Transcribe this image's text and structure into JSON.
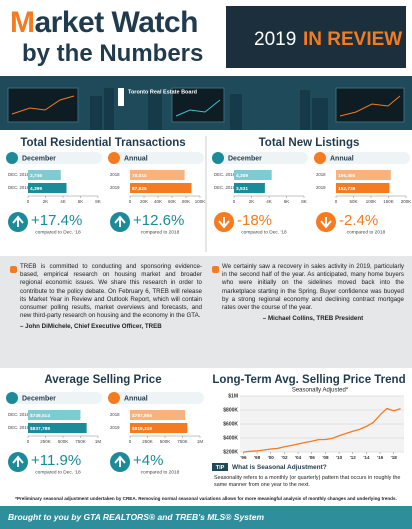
{
  "header": {
    "title": "Market Watch",
    "subtitle": "by the Numbers",
    "badge_year": "2019",
    "badge_text": "IN REVIEW",
    "logo": "Toronto Real Estate Board"
  },
  "sections": [
    "Total Residential Transactions",
    "Total New Listings",
    "Average Selling Price"
  ],
  "quotes": [
    {
      "text": "TREB is committed to conducting and sponsoring evidence-based, empirical research on housing market and broader regional economic issues. We share this research in order to contribute to the policy debate. On February 6, TREB will release its Market Year in Review and Outlook Report, which will contain consumer polling results, market overviews and forecasts, and new third-party research on housing and the economy in the GTA.",
      "author": "– John DiMichele, Chief Executive Officer, TREB"
    },
    {
      "text": "We certainly saw a recovery in sales activity in 2019, particularly in the second half of the year. As anticipated, many home buyers who were initially on the sidelines moved back into the marketplace starting in the Spring. Buyer confidence was buoyed by a strong regional economy and declining contract mortgage rates over the course of the year.",
      "author": "– Michael Collins, TREB President"
    }
  ],
  "chart_data": [
    {
      "type": "bar",
      "title": "December",
      "categories": [
        "DEC. 2018",
        "DEC. 2019"
      ],
      "values": [
        3746,
        4399
      ],
      "value_labels": [
        "3,746",
        "4,399"
      ],
      "colors": [
        "#7fcbd3",
        "#1b8a99"
      ],
      "xlim": [
        0,
        8000
      ],
      "xticks": [
        0,
        {
          "value": 2000,
          "label": "2K"
        },
        {
          "value": 4000,
          "label": "4K"
        },
        {
          "value": 6000,
          "label": "6K"
        },
        {
          "value": 8000,
          "label": "8K"
        }
      ],
      "change": 17.4,
      "change_label": "+17.4%",
      "change_note": "compared to Dec. '18"
    },
    {
      "type": "bar",
      "title": "Annual",
      "categories": [
        "2018",
        "2019"
      ],
      "values": [
        78015,
        87825
      ],
      "value_labels": [
        "78,015",
        "87,825"
      ],
      "colors": [
        "#f9b27c",
        "#f47b20"
      ],
      "xlim": [
        0,
        100000
      ],
      "xticks": [
        0,
        {
          "value": 20000,
          "label": "20K"
        },
        {
          "value": 40000,
          "label": "40K"
        },
        {
          "value": 60000,
          "label": "60K"
        },
        {
          "value": 80000,
          "label": "80K"
        },
        {
          "value": 100000,
          "label": "100K"
        }
      ],
      "change": 12.6,
      "change_label": "+12.6%",
      "change_note": "compared to 2018"
    },
    {
      "type": "bar",
      "title": "December",
      "categories": [
        "DEC. 2018",
        "DEC. 2019"
      ],
      "values": [
        4309,
        3531
      ],
      "value_labels": [
        "4,309",
        "3,531"
      ],
      "colors": [
        "#7fcbd3",
        "#1b8a99"
      ],
      "xlim": [
        0,
        8000
      ],
      "xticks": [
        0,
        {
          "value": 2000,
          "label": "2K"
        },
        {
          "value": 4000,
          "label": "4K"
        },
        {
          "value": 6000,
          "label": "6K"
        },
        {
          "value": 8000,
          "label": "8K"
        }
      ],
      "change": -18,
      "change_label": "-18%",
      "change_note": "compared to Dec. '18"
    },
    {
      "type": "bar",
      "title": "Annual",
      "categories": [
        "2018",
        "2019"
      ],
      "values": [
        156490,
        152739
      ],
      "value_labels": [
        "156,490",
        "152,739"
      ],
      "colors": [
        "#f9b27c",
        "#f47b20"
      ],
      "xlim": [
        0,
        200000
      ],
      "xticks": [
        0,
        {
          "value": 50000,
          "label": "50K"
        },
        {
          "value": 100000,
          "label": "100K"
        },
        {
          "value": 150000,
          "label": "150K"
        },
        {
          "value": 200000,
          "label": "200K"
        }
      ],
      "change": -2.4,
      "change_label": "-2.4%",
      "change_note": "compared to 2018"
    },
    {
      "type": "bar",
      "title": "December",
      "categories": [
        "DEC. 2018",
        "DEC. 2019"
      ],
      "values": [
        749514,
        837788
      ],
      "value_labels": [
        "$749,514",
        "$837,788"
      ],
      "colors": [
        "#7fcbd3",
        "#1b8a99"
      ],
      "xlim": [
        0,
        1000000
      ],
      "xticks": [
        0,
        {
          "value": 250000,
          "label": "250K"
        },
        {
          "value": 500000,
          "label": "500K"
        },
        {
          "value": 750000,
          "label": "750K"
        },
        {
          "value": 1000000,
          "label": "1M"
        }
      ],
      "change": 11.9,
      "change_label": "+11.9%",
      "change_note": "compared to Dec. '18"
    },
    {
      "type": "bar",
      "title": "Annual",
      "categories": [
        "2018",
        "2019"
      ],
      "values": [
        787856,
        819319
      ],
      "value_labels": [
        "$787,856",
        "$819,319"
      ],
      "colors": [
        "#f9b27c",
        "#f47b20"
      ],
      "xlim": [
        0,
        1000000
      ],
      "xticks": [
        0,
        {
          "value": 250000,
          "label": "250K"
        },
        {
          "value": 500000,
          "label": "500K"
        },
        {
          "value": 750000,
          "label": "750K"
        },
        {
          "value": 1000000,
          "label": "1M"
        }
      ],
      "change": 4,
      "change_label": "+4%",
      "change_note": "compared to 2018"
    },
    {
      "type": "line",
      "title": "Long-Term Avg. Selling Price Trend",
      "subtitle": "Seasonally Adjusted*",
      "x": [
        1996,
        1997,
        1998,
        1999,
        2000,
        2001,
        2002,
        2003,
        2004,
        2005,
        2006,
        2007,
        2008,
        2009,
        2010,
        2011,
        2012,
        2013,
        2014,
        2015,
        2016,
        2017,
        2018,
        2019
      ],
      "series": [
        {
          "name": "Average selling price",
          "color": "#f47b20",
          "values": [
            198000,
            211000,
            216000,
            228000,
            243000,
            251000,
            275000,
            293000,
            315000,
            336000,
            353000,
            377000,
            379000,
            395000,
            432000,
            465000,
            497000,
            523000,
            566000,
            622000,
            730000,
            822000,
            787000,
            820000
          ]
        }
      ],
      "xlim": [
        1995.5,
        2019.5
      ],
      "xticks": [
        {
          "value": 1996,
          "label": "'96"
        },
        {
          "value": 1998,
          "label": "'98"
        },
        {
          "value": 2000,
          "label": "'00"
        },
        {
          "value": 2002,
          "label": "'02"
        },
        {
          "value": 2004,
          "label": "'04"
        },
        {
          "value": 2006,
          "label": "'06"
        },
        {
          "value": 2008,
          "label": "'08"
        },
        {
          "value": 2010,
          "label": "'10"
        },
        {
          "value": 2012,
          "label": "'12"
        },
        {
          "value": 2014,
          "label": "'14"
        },
        {
          "value": 2016,
          "label": "'16"
        },
        {
          "value": 2018,
          "label": "'18"
        }
      ],
      "ylim": [
        200000,
        1000000
      ],
      "yticks": [
        {
          "value": 200000,
          "label": "$200K"
        },
        {
          "value": 400000,
          "label": "$400K"
        },
        {
          "value": 600000,
          "label": "$600K"
        },
        {
          "value": 800000,
          "label": "$800K"
        },
        {
          "value": 1000000,
          "label": "$1M"
        }
      ],
      "grid": true
    }
  ],
  "tip": {
    "badge": "TIP",
    "title": "What is Seasonal Adjustment?",
    "text": "Seasonality refers to a monthly (or quarterly) pattern that occurs in roughly the same manner from one year to the next."
  },
  "footnote": "*Preliminary seasonal adjustment undertaken by CREA. Removing normal seasonal variations allows for more meaningful analysis of monthly changes and underlying trends.",
  "footer": "Brought to you by GTA REALTORS® and TREB's MLS® System"
}
